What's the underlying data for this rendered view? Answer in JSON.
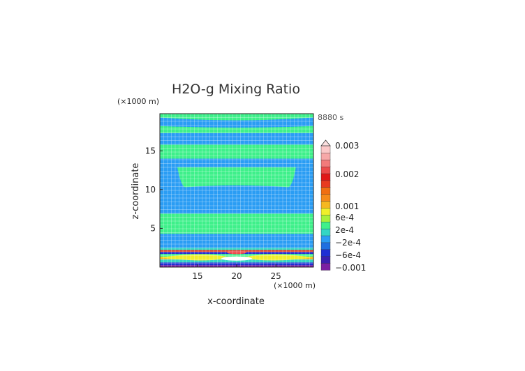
{
  "chart_data": {
    "type": "heatmap",
    "title": "H2O-g Mixing Ratio",
    "time_label": "8880 s",
    "xlabel": "x-coordinate",
    "ylabel": "z-coordinate",
    "x_unit": "(×1000 m)",
    "y_unit": "(×1000 m)",
    "xlim": [
      10.2,
      29.8
    ],
    "ylim": [
      0,
      19.8
    ],
    "x_ticks": [
      15,
      20,
      25
    ],
    "y_ticks": [
      5,
      10,
      15
    ],
    "grid": true,
    "legend_position": "right",
    "colorbar": {
      "colors": [
        "#7b1fa2",
        "#3a1fb0",
        "#1f2fd4",
        "#1f6fe0",
        "#2a9df4",
        "#33d6c4",
        "#3ef08a",
        "#a8f03a",
        "#f0ef2a",
        "#f5b820",
        "#f58a1a",
        "#f06e12",
        "#e83a1f",
        "#e01818",
        "#ec4a4a",
        "#f27a7a",
        "#f7a8a8",
        "#fbc8c8"
      ],
      "labels": [
        {
          "text": "0.003",
          "level": 0.003
        },
        {
          "text": "0.002",
          "level": 0.002
        },
        {
          "text": "0.001",
          "level": 0.001
        },
        {
          "text": "6e-4",
          "level": 0.0006
        },
        {
          "text": "2e-4",
          "level": 0.0002
        },
        {
          "text": "−2e-4",
          "level": -0.0002
        },
        {
          "text": "−6e-4",
          "level": -0.0006
        },
        {
          "text": "−0.001",
          "level": -0.001
        }
      ]
    },
    "bands": [
      {
        "z0": 0.0,
        "z1": 0.25,
        "color": "#7b1fa2"
      },
      {
        "z0": 0.25,
        "z1": 0.6,
        "color": "#1f2fd4"
      },
      {
        "z0": 0.6,
        "z1": 1.0,
        "color": "#33d6c4"
      },
      {
        "z0": 1.0,
        "z1": 1.35,
        "color": "#f5b820"
      },
      {
        "z0": 1.35,
        "z1": 1.7,
        "color": "#3ef08a"
      },
      {
        "z0": 1.7,
        "z1": 1.95,
        "color": "#1f2fd4"
      },
      {
        "z0": 1.95,
        "z1": 2.2,
        "color": "#e83a1f"
      },
      {
        "z0": 2.2,
        "z1": 2.5,
        "color": "#33d6c4"
      },
      {
        "z0": 2.5,
        "z1": 4.3,
        "color": "#2a9df4"
      },
      {
        "z0": 4.3,
        "z1": 6.9,
        "color": "#3ef08a"
      },
      {
        "z0": 6.9,
        "z1": 9.2,
        "color": "#2a9df4"
      },
      {
        "z0": 9.2,
        "z1": 12.9,
        "color": "#3ef08a"
      },
      {
        "z0": 12.9,
        "z1": 14.0,
        "color": "#2a9df4"
      },
      {
        "z0": 14.0,
        "z1": 15.8,
        "color": "#3ef08a"
      },
      {
        "z0": 15.8,
        "z1": 17.3,
        "color": "#2a9df4"
      },
      {
        "z0": 17.3,
        "z1": 19.8,
        "color": "#3ef08a"
      }
    ]
  }
}
